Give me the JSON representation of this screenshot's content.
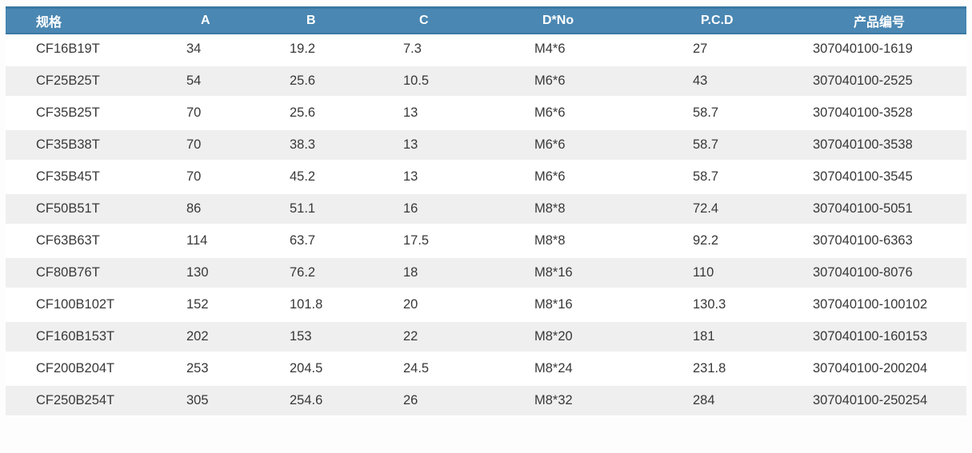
{
  "table": {
    "columns": [
      "规格",
      "A",
      "B",
      "C",
      "D*No",
      "P.C.D",
      "产品编号"
    ],
    "rows": [
      [
        "CF16B19T",
        "34",
        "19.2",
        "7.3",
        "M4*6",
        "27",
        "307040100-1619"
      ],
      [
        "CF25B25T",
        "54",
        "25.6",
        "10.5",
        "M6*6",
        "43",
        "307040100-2525"
      ],
      [
        "CF35B25T",
        "70",
        "25.6",
        "13",
        "M6*6",
        "58.7",
        "307040100-3528"
      ],
      [
        "CF35B38T",
        "70",
        "38.3",
        "13",
        "M6*6",
        "58.7",
        "307040100-3538"
      ],
      [
        "CF35B45T",
        "70",
        "45.2",
        "13",
        "M6*6",
        "58.7",
        "307040100-3545"
      ],
      [
        "CF50B51T",
        "86",
        "51.1",
        "16",
        "M8*8",
        "72.4",
        "307040100-5051"
      ],
      [
        "CF63B63T",
        "114",
        "63.7",
        "17.5",
        "M8*8",
        "92.2",
        "307040100-6363"
      ],
      [
        "CF80B76T",
        "130",
        "76.2",
        "18",
        "M8*16",
        "110",
        "307040100-8076"
      ],
      [
        "CF100B102T",
        "152",
        "101.8",
        "20",
        "M8*16",
        "130.3",
        "307040100-100102"
      ],
      [
        "CF160B153T",
        "202",
        "153",
        "22",
        "M8*20",
        "181",
        "307040100-160153"
      ],
      [
        "CF200B204T",
        "253",
        "204.5",
        "24.5",
        "M8*24",
        "231.8",
        "307040100-200204"
      ],
      [
        "CF250B254T",
        "305",
        "254.6",
        "26",
        "M8*32",
        "284",
        "307040100-250254"
      ]
    ]
  },
  "colors": {
    "header_bg": "#4a87b2",
    "header_border": "#3a78a3",
    "header_text": "#ffffff",
    "row_stripe": "#efefef",
    "row_text": "#383838",
    "page_bg": "#fdfdfd"
  }
}
